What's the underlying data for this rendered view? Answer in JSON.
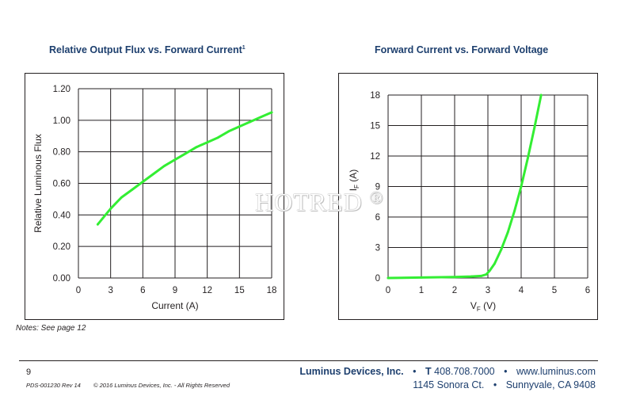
{
  "chart_data": [
    {
      "type": "line",
      "title": "Relative Output Flux vs. Forward Current",
      "title_footnote": "1",
      "xlabel": "Current  (A)",
      "ylabel": "Relative Luminous Flux",
      "xlim": [
        0,
        18
      ],
      "ylim": [
        0,
        1.2
      ],
      "x_ticks": [
        0,
        3,
        6,
        9,
        12,
        15,
        18
      ],
      "y_ticks": [
        "0.00",
        "0.20",
        "0.40",
        "0.60",
        "0.80",
        "1.00",
        "1.20"
      ],
      "grid": true,
      "series_color": "#33ee33",
      "series": [
        {
          "x": [
            1.8,
            3,
            4,
            5,
            6,
            7,
            8,
            9,
            10,
            11,
            12,
            13,
            14,
            15,
            16,
            17,
            18
          ],
          "values": [
            0.34,
            0.44,
            0.51,
            0.56,
            0.61,
            0.66,
            0.71,
            0.75,
            0.79,
            0.83,
            0.86,
            0.89,
            0.93,
            0.96,
            0.99,
            1.02,
            1.05
          ]
        }
      ]
    },
    {
      "type": "line",
      "title": "Forward Current vs. Forward Voltage",
      "xlabel_main": "V",
      "xlabel_sub": "F",
      "xlabel_unit": " (V)",
      "ylabel_main": "I",
      "ylabel_sub": "F",
      "ylabel_unit": " (A)",
      "xlim": [
        0,
        6
      ],
      "ylim": [
        0,
        18
      ],
      "x_ticks": [
        0,
        1,
        2,
        3,
        4,
        5,
        6
      ],
      "y_ticks": [
        0,
        3,
        6,
        9,
        12,
        15,
        18
      ],
      "grid": true,
      "series_color": "#33ee33",
      "series": [
        {
          "x": [
            0,
            1,
            2,
            2.5,
            2.8,
            2.95,
            3.05,
            3.2,
            3.4,
            3.6,
            3.8,
            4.0,
            4.2,
            4.4,
            4.6
          ],
          "values": [
            0,
            0.05,
            0.1,
            0.15,
            0.2,
            0.35,
            0.7,
            1.4,
            2.8,
            4.5,
            6.6,
            9.0,
            11.8,
            14.8,
            18.0
          ]
        }
      ]
    }
  ],
  "watermark": "HOTRED",
  "watermark_mark": "®",
  "notes": "Notes: See page 12",
  "footer": {
    "page_number": "9",
    "doc_id": "PDS-001230 Rev 14",
    "copyright": "© 2016 Luminus Devices, Inc. - All Rights Reserved",
    "company": "Luminus Devices, Inc.",
    "bullet": "•",
    "phone_prefix": "T",
    "phone": "408.708.7000",
    "website": "www.luminus.com",
    "address": "1145 Sonora Ct.",
    "city": "Sunnyvale, CA 9408"
  }
}
